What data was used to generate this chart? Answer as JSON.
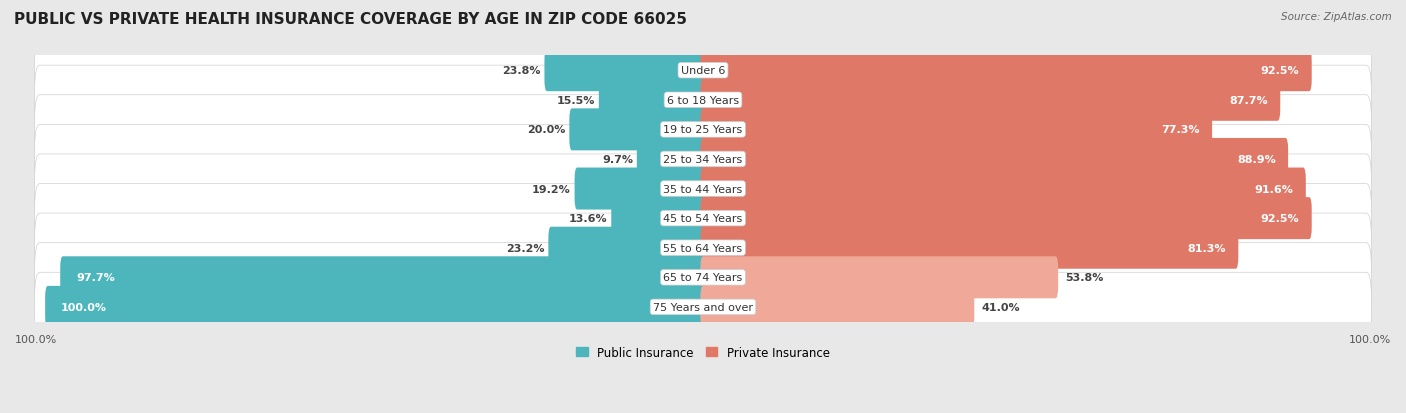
{
  "title": "PUBLIC VS PRIVATE HEALTH INSURANCE COVERAGE BY AGE IN ZIP CODE 66025",
  "source": "Source: ZipAtlas.com",
  "categories": [
    "Under 6",
    "6 to 18 Years",
    "19 to 25 Years",
    "25 to 34 Years",
    "35 to 44 Years",
    "45 to 54 Years",
    "55 to 64 Years",
    "65 to 74 Years",
    "75 Years and over"
  ],
  "public_values": [
    23.8,
    15.5,
    20.0,
    9.7,
    19.2,
    13.6,
    23.2,
    97.7,
    100.0
  ],
  "private_values": [
    92.5,
    87.7,
    77.3,
    88.9,
    91.6,
    92.5,
    81.3,
    53.8,
    41.0
  ],
  "public_color": "#4db6bc",
  "private_color_high": "#e07868",
  "private_color_low": "#f0a898",
  "row_bg_color": "#e8e8e8",
  "fig_bg_color": "#e8e8e8",
  "max_val": 100.0,
  "legend_public": "Public Insurance",
  "legend_private": "Private Insurance",
  "title_fontsize": 11,
  "label_fontsize": 8,
  "source_fontsize": 7.5,
  "bar_height": 0.62,
  "private_threshold": 70
}
